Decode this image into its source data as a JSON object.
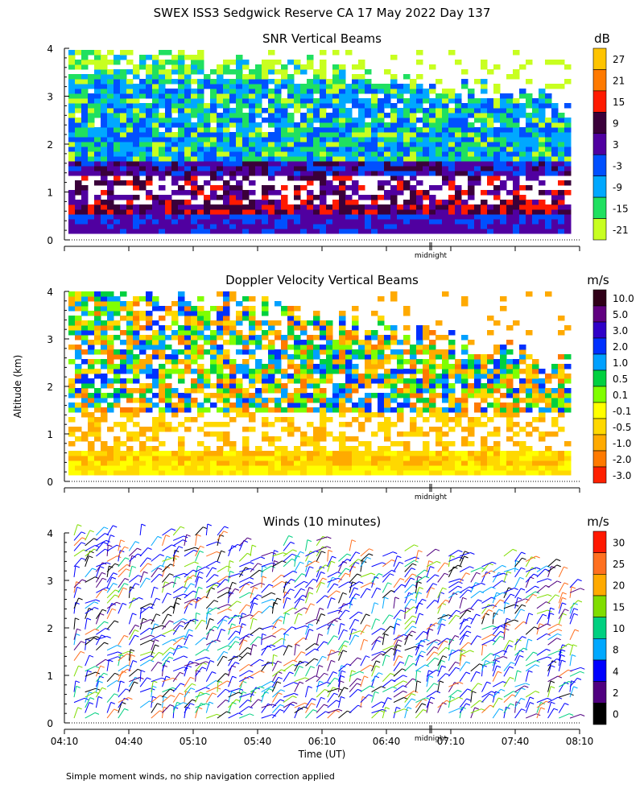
{
  "title": "SWEX ISS3 Sedgwick Reserve CA  17 May 2022 Day 137",
  "ylabel": "Altitude (km)",
  "xlabel": "Time (UT)",
  "midnight_label": "midnight",
  "footnote": "Simple moment winds, no ship navigation correction applied",
  "x_ticks": [
    "04:10",
    "04:40",
    "05:10",
    "05:40",
    "06:10",
    "06:40",
    "07:10",
    "07:40",
    "08:10"
  ],
  "y_ticks": [
    "0",
    "1",
    "2",
    "3",
    "4"
  ],
  "chart_data": [
    {
      "type": "heatmap",
      "title": "SNR Vertical Beams",
      "unit": "dB",
      "ylim": [
        0,
        4
      ],
      "colorbar": {
        "labels": [
          "27",
          "21",
          "15",
          "9",
          "3",
          "-3",
          "-9",
          "-15",
          "-21"
        ],
        "colors": [
          "#ffc400",
          "#ff7a00",
          "#ff1a00",
          "#3a003a",
          "#5000a0",
          "#0050ff",
          "#00a8ff",
          "#20e060",
          "#c8ff20"
        ]
      }
    },
    {
      "type": "heatmap",
      "title": "Doppler Velocity Vertical Beams",
      "unit": "m/s",
      "ylim": [
        0,
        4
      ],
      "colorbar": {
        "labels": [
          "10.0",
          "5.0",
          "3.0",
          "2.0",
          "1.0",
          "0.5",
          "0.1",
          "-0.1",
          "-0.5",
          "-1.0",
          "-2.0",
          "-3.0"
        ],
        "colors": [
          "#300018",
          "#600080",
          "#3000c8",
          "#0030ff",
          "#00a0ff",
          "#00d040",
          "#80ff00",
          "#ffff00",
          "#ffd800",
          "#ffaa00",
          "#ff7a00",
          "#ff2000"
        ]
      }
    },
    {
      "type": "scatter",
      "title": "Winds (10 minutes)",
      "unit": "m/s",
      "ylim": [
        0,
        4
      ],
      "colorbar": {
        "labels": [
          "30",
          "25",
          "20",
          "15",
          "10",
          "8",
          "4",
          "2",
          "0"
        ],
        "colors": [
          "#ff1800",
          "#ff7020",
          "#ffaa00",
          "#80dd00",
          "#00d080",
          "#00a8ff",
          "#0000ff",
          "#500080",
          "#000000"
        ]
      }
    }
  ]
}
